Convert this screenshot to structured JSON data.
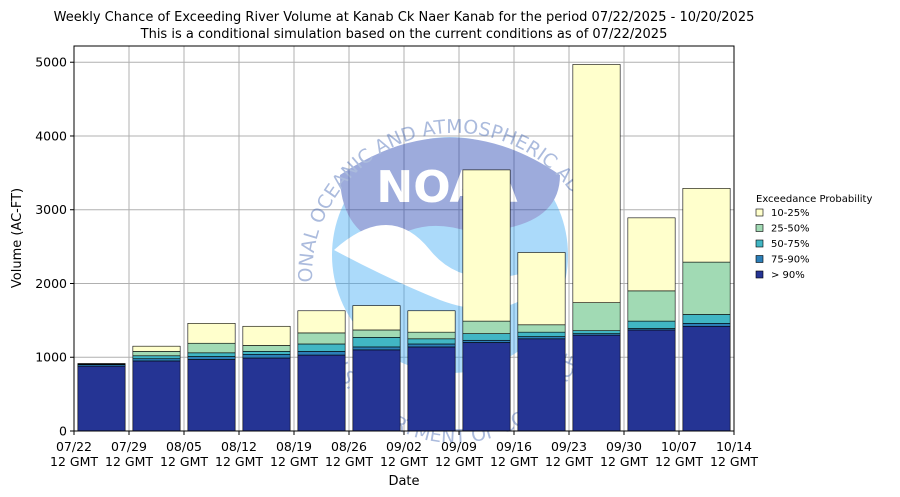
{
  "chart_data": {
    "type": "bar",
    "stacked": true,
    "title": "Weekly Chance of Exceeding River Volume at Kanab Ck Naer Kanab for the period 07/22/2025 - 10/20/2025",
    "subtitle": "This is a conditional simulation based on the current conditions as of 07/22/2025",
    "xlabel": "Date",
    "ylabel": "Volume (AC-FT)",
    "ylim": [
      0,
      5220
    ],
    "yticks": [
      0,
      1000,
      2000,
      3000,
      4000,
      5000
    ],
    "grid": true,
    "xtick_labels": [
      {
        "date": "07/22",
        "time": "12 GMT"
      },
      {
        "date": "07/29",
        "time": "12 GMT"
      },
      {
        "date": "08/05",
        "time": "12 GMT"
      },
      {
        "date": "08/12",
        "time": "12 GMT"
      },
      {
        "date": "08/19",
        "time": "12 GMT"
      },
      {
        "date": "08/26",
        "time": "12 GMT"
      },
      {
        "date": "09/02",
        "time": "12 GMT"
      },
      {
        "date": "09/09",
        "time": "12 GMT"
      },
      {
        "date": "09/16",
        "time": "12 GMT"
      },
      {
        "date": "09/23",
        "time": "12 GMT"
      },
      {
        "date": "09/30",
        "time": "12 GMT"
      },
      {
        "date": "10/07",
        "time": "12 GMT"
      },
      {
        "date": "10/14",
        "time": "12 GMT"
      }
    ],
    "legend": {
      "title": "Exceedance Probability",
      "placement": "right",
      "entries": [
        "10-25%",
        "25-50%",
        "50-75%",
        "75-90%",
        "> 90%"
      ]
    },
    "colors": {
      "> 90%": "#253494",
      "75-90%": "#2c7fb8",
      "50-75%": "#41b6c4",
      "25-50%": "#a1dab4",
      "10-25%": "#ffffcc"
    },
    "weeks": [
      {
        "start": "07/22",
        "p90": 880,
        "p75_90": 900,
        "p50_75": 905,
        "p25_50": 910,
        "p10_25": 915
      },
      {
        "start": "07/29",
        "p90": 950,
        "p75_90": 980,
        "p50_75": 1020,
        "p25_50": 1080,
        "p10_25": 1150
      },
      {
        "start": "08/05",
        "p90": 970,
        "p75_90": 1010,
        "p50_75": 1060,
        "p25_50": 1190,
        "p10_25": 1460
      },
      {
        "start": "08/12",
        "p90": 990,
        "p75_90": 1040,
        "p50_75": 1080,
        "p25_50": 1160,
        "p10_25": 1420
      },
      {
        "start": "08/19",
        "p90": 1030,
        "p75_90": 1080,
        "p50_75": 1180,
        "p25_50": 1330,
        "p10_25": 1630
      },
      {
        "start": "08/26",
        "p90": 1100,
        "p75_90": 1140,
        "p50_75": 1270,
        "p25_50": 1370,
        "p10_25": 1700
      },
      {
        "start": "09/02",
        "p90": 1140,
        "p75_90": 1180,
        "p50_75": 1250,
        "p25_50": 1340,
        "p10_25": 1630
      },
      {
        "start": "09/09",
        "p90": 1200,
        "p75_90": 1230,
        "p50_75": 1320,
        "p25_50": 1490,
        "p10_25": 3540
      },
      {
        "start": "09/16",
        "p90": 1250,
        "p75_90": 1280,
        "p50_75": 1340,
        "p25_50": 1440,
        "p10_25": 2420
      },
      {
        "start": "09/23",
        "p90": 1300,
        "p75_90": 1320,
        "p50_75": 1360,
        "p25_50": 1740,
        "p10_25": 4970
      },
      {
        "start": "09/30",
        "p90": 1370,
        "p75_90": 1390,
        "p50_75": 1490,
        "p25_50": 1900,
        "p10_25": 2890
      },
      {
        "start": "10/07",
        "p90": 1420,
        "p75_90": 1460,
        "p50_75": 1580,
        "p25_50": 2290,
        "p10_25": 3290
      }
    ]
  },
  "watermark": {
    "logo_text": "NOAA",
    "ring_text_top": "NATIONAL OCEANIC AND ATMOSPHERIC ADMINISTRATION",
    "ring_text_bottom": "U.S. DEPARTMENT OF COMMERCE"
  }
}
